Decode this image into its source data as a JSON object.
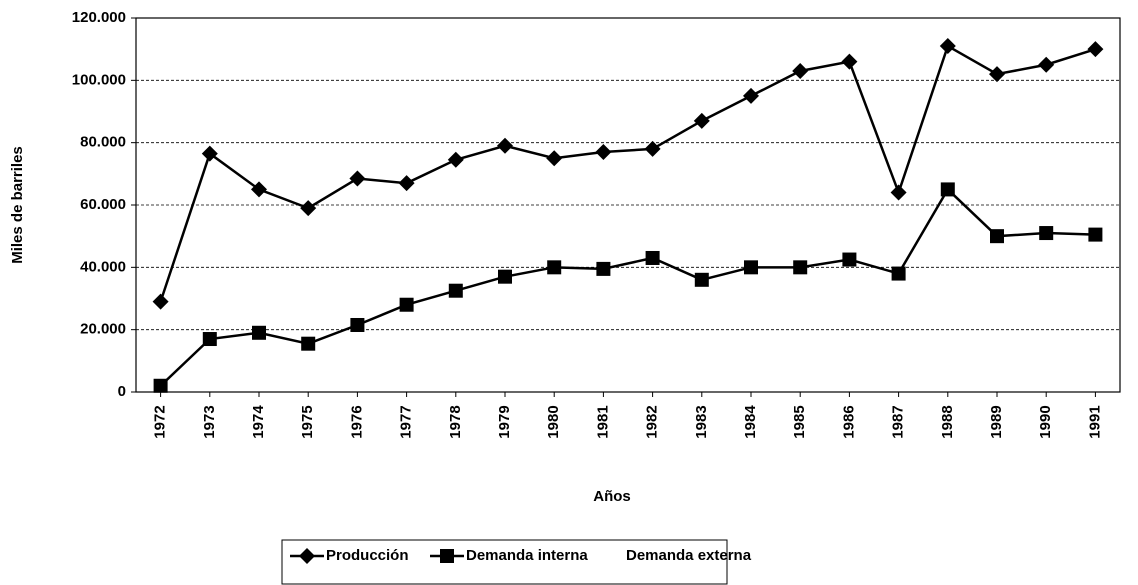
{
  "chart_data": {
    "type": "line",
    "x_label": "Años",
    "y_label": "Miles de barriles",
    "categories": [
      "1972",
      "1973",
      "1974",
      "1975",
      "1976",
      "1977",
      "1978",
      "1979",
      "1980",
      "1981",
      "1982",
      "1983",
      "1984",
      "1985",
      "1986",
      "1987",
      "1988",
      "1989",
      "1990",
      "1991"
    ],
    "series": [
      {
        "name": "Producción",
        "color": "#000000",
        "marker": "diamond",
        "values": [
          29000,
          76500,
          65000,
          59000,
          68500,
          67000,
          74500,
          79000,
          75000,
          77000,
          78000,
          87000,
          95000,
          103000,
          106000,
          64000,
          111000,
          102000,
          105000,
          110000
        ]
      },
      {
        "name": "Demanda interna",
        "color": "#000000",
        "marker": "square",
        "values": [
          2000,
          17000,
          19000,
          15500,
          21500,
          28000,
          32500,
          37000,
          40000,
          39500,
          43000,
          36000,
          40000,
          40000,
          42500,
          38000,
          65000,
          50000,
          51000,
          50500
        ]
      },
      {
        "name": "Demanda externa",
        "color": "#ffffff",
        "marker": "none",
        "values": [
          null,
          null,
          null,
          null,
          null,
          null,
          null,
          null,
          null,
          null,
          null,
          null,
          null,
          null,
          null,
          null,
          null,
          null,
          null,
          null
        ]
      }
    ],
    "ylim": [
      0,
      120000
    ],
    "yticks": [
      0,
      {
        "value": 20000,
        "label": "20.000"
      },
      {
        "value": 40000,
        "label": "40.000"
      },
      {
        "value": 60000,
        "label": "60.000"
      },
      {
        "value": 80000,
        "label": "80.000"
      },
      {
        "value": 100000,
        "label": "100.000"
      },
      {
        "value": 120000,
        "label": "120.000"
      }
    ],
    "grid": true,
    "legend": "bottom"
  }
}
